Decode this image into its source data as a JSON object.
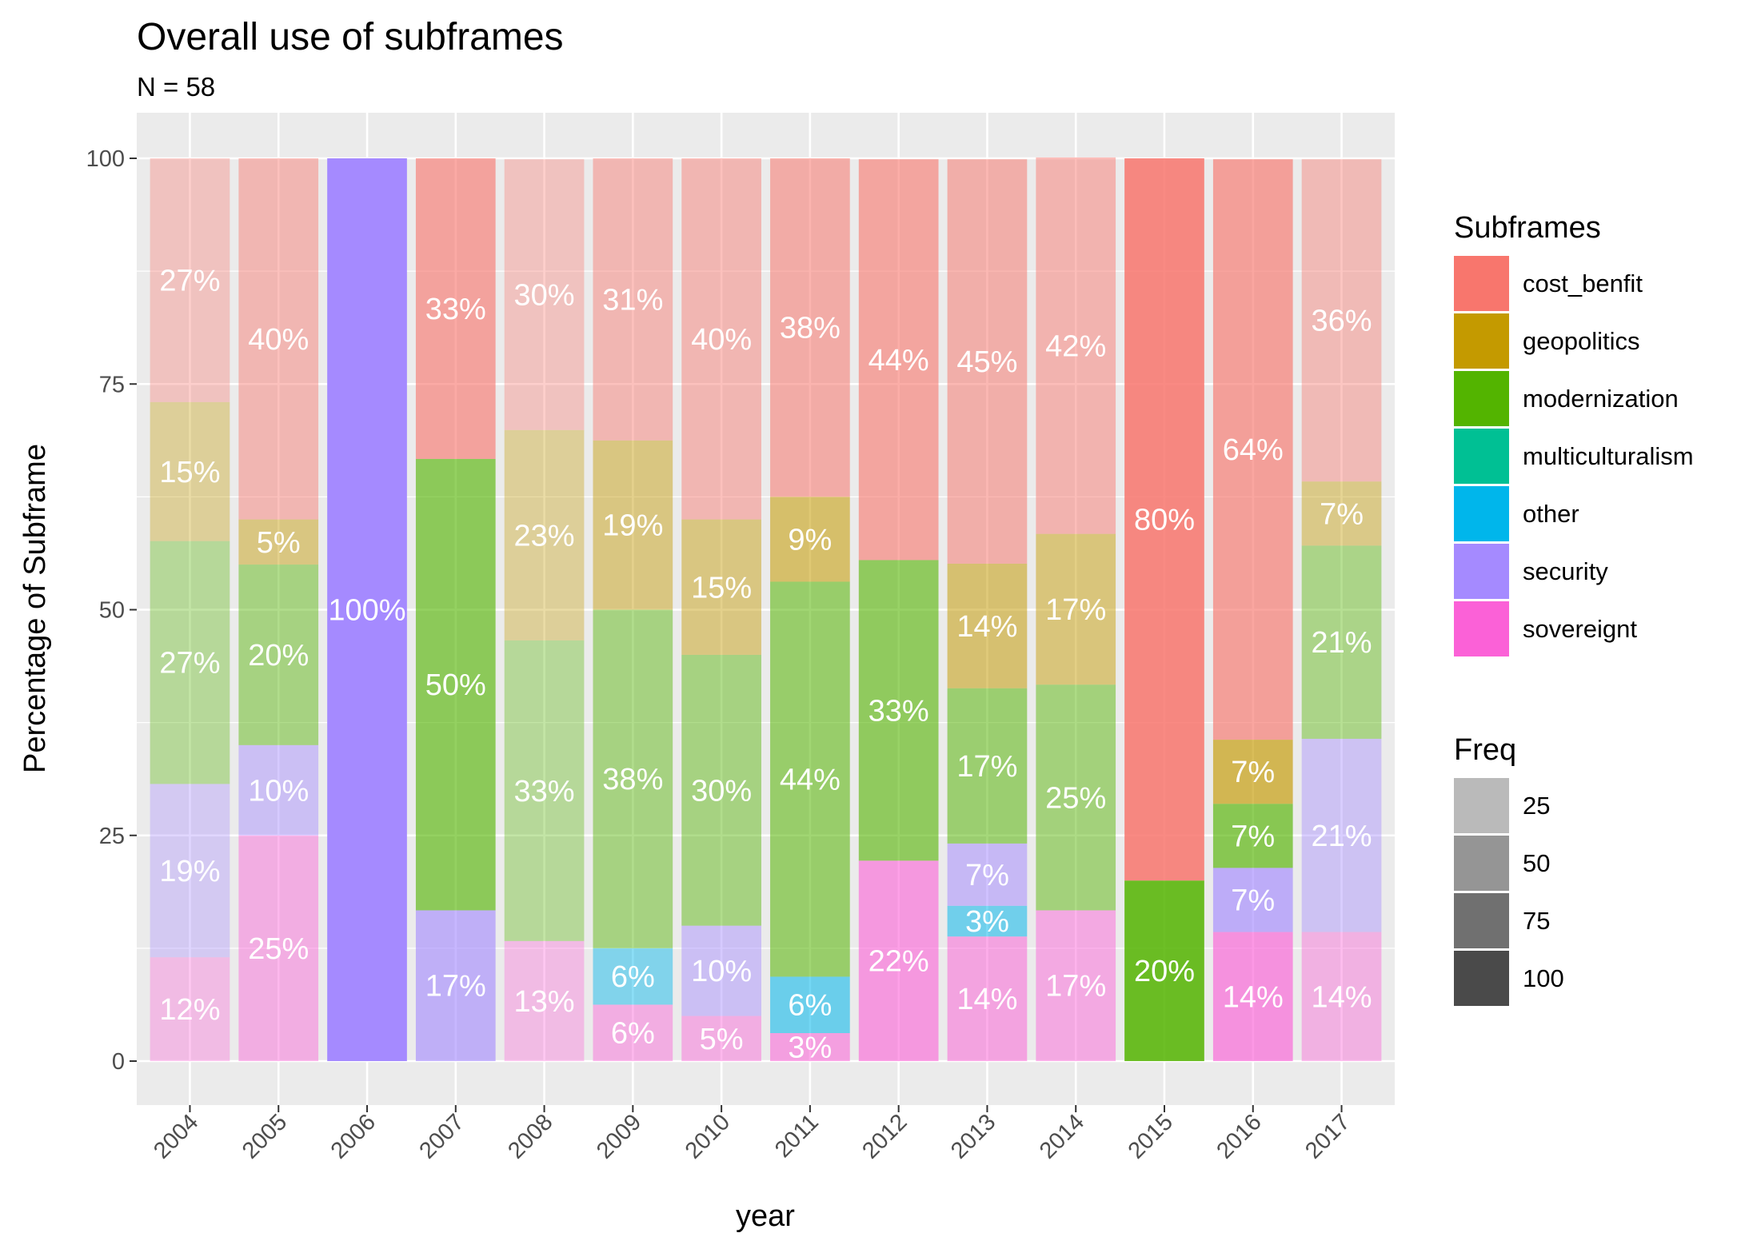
{
  "chart_data": {
    "type": "bar",
    "stacked": true,
    "title": "Overall use of subframes",
    "subtitle": "N = 58",
    "xlabel": "year",
    "ylabel": "Percentage of Subframe",
    "ylim": [
      0,
      100
    ],
    "yticks": [
      0,
      25,
      50,
      75,
      100
    ],
    "grid": true,
    "legend_position": "right",
    "categories": [
      "2004",
      "2005",
      "2006",
      "2007",
      "2008",
      "2009",
      "2010",
      "2011",
      "2012",
      "2013",
      "2014",
      "2015",
      "2016",
      "2017"
    ],
    "stack_order": [
      "sovereignt",
      "other",
      "security",
      "multiculturalism",
      "modernization",
      "geopolitics",
      "cost_benfit"
    ],
    "series": [
      {
        "name": "cost_benfit",
        "color": "#F8766D",
        "values": [
          27,
          40,
          0,
          33.3,
          30,
          31.25,
          40,
          37.5,
          44.4,
          44.8,
          41.7,
          80,
          64.3,
          35.7
        ],
        "labels": [
          "27%",
          "40%",
          "",
          "33%",
          "30%",
          "31%",
          "40%",
          "38%",
          "44%",
          "45%",
          "42%",
          "80%",
          "64%",
          "36%"
        ]
      },
      {
        "name": "geopolitics",
        "color": "#C49A00",
        "values": [
          15.4,
          5,
          0,
          0,
          23.3,
          18.75,
          15,
          9.4,
          0,
          13.8,
          16.7,
          0,
          7.1,
          7.1
        ],
        "labels": [
          "15%",
          "5%",
          "",
          "",
          "23%",
          "19%",
          "15%",
          "9%",
          "",
          "14%",
          "17%",
          "",
          "7%",
          "7%"
        ]
      },
      {
        "name": "modernization",
        "color": "#53B400",
        "values": [
          26.9,
          20,
          0,
          50,
          33.3,
          37.5,
          30,
          43.75,
          33.3,
          17.2,
          25,
          20,
          7.1,
          21.4
        ],
        "labels": [
          "27%",
          "20%",
          "",
          "50%",
          "33%",
          "38%",
          "30%",
          "44%",
          "33%",
          "17%",
          "25%",
          "20%",
          "7%",
          "21%"
        ]
      },
      {
        "name": "multiculturalism",
        "color": "#00C094",
        "values": [
          0,
          0,
          0,
          0,
          0,
          0,
          0,
          0,
          0,
          0,
          0,
          0,
          0,
          0
        ],
        "labels": [
          "",
          "",
          "",
          "",
          "",
          "",
          "",
          "",
          "",
          "",
          "",
          "",
          "",
          ""
        ]
      },
      {
        "name": "other",
        "color": "#00B6EB",
        "values": [
          0,
          0,
          0,
          0,
          0,
          6.25,
          0,
          6.25,
          0,
          3.4,
          0,
          0,
          0,
          0
        ],
        "labels": [
          "",
          "",
          "",
          "",
          "",
          "6%",
          "",
          "6%",
          "",
          "3%",
          "",
          "",
          "",
          ""
        ]
      },
      {
        "name": "security",
        "color": "#A58AFF",
        "values": [
          19.2,
          10,
          100,
          16.7,
          0,
          0,
          10,
          0,
          0,
          6.9,
          0,
          0,
          7.1,
          21.4
        ],
        "labels": [
          "19%",
          "10%",
          "100%",
          "17%",
          "",
          "",
          "10%",
          "",
          "",
          "7%",
          "",
          "",
          "7%",
          "21%"
        ]
      },
      {
        "name": "sovereignt",
        "color": "#FB61D7",
        "values": [
          11.5,
          25,
          0,
          0,
          13.3,
          6.25,
          5,
          3.1,
          22.2,
          13.8,
          16.7,
          0,
          14.3,
          14.3
        ],
        "labels": [
          "12%",
          "25%",
          "",
          "",
          "13%",
          "6%",
          "5%",
          "3%",
          "22%",
          "14%",
          "17%",
          "",
          "14%",
          "14%"
        ]
      }
    ],
    "freq_alpha": [
      0.35,
      0.45,
      1.0,
      0.62,
      0.35,
      0.45,
      0.45,
      0.55,
      0.6,
      0.52,
      0.48,
      0.85,
      0.65,
      0.42
    ]
  },
  "legend": {
    "fill_title": "Subframes",
    "fill_items": [
      {
        "label": "cost_benfit",
        "color": "#F8766D"
      },
      {
        "label": "geopolitics",
        "color": "#C49A00"
      },
      {
        "label": "modernization",
        "color": "#53B400"
      },
      {
        "label": "multiculturalism",
        "color": "#00C094"
      },
      {
        "label": "other",
        "color": "#00B6EB"
      },
      {
        "label": "security",
        "color": "#A58AFF"
      },
      {
        "label": "sovereignt",
        "color": "#FB61D7"
      }
    ],
    "alpha_title": "Freq",
    "alpha_items": [
      {
        "label": "25",
        "color": "#bababa"
      },
      {
        "label": "50",
        "color": "#959595"
      },
      {
        "label": "75",
        "color": "#707070"
      },
      {
        "label": "100",
        "color": "#4a4a4a"
      }
    ]
  }
}
